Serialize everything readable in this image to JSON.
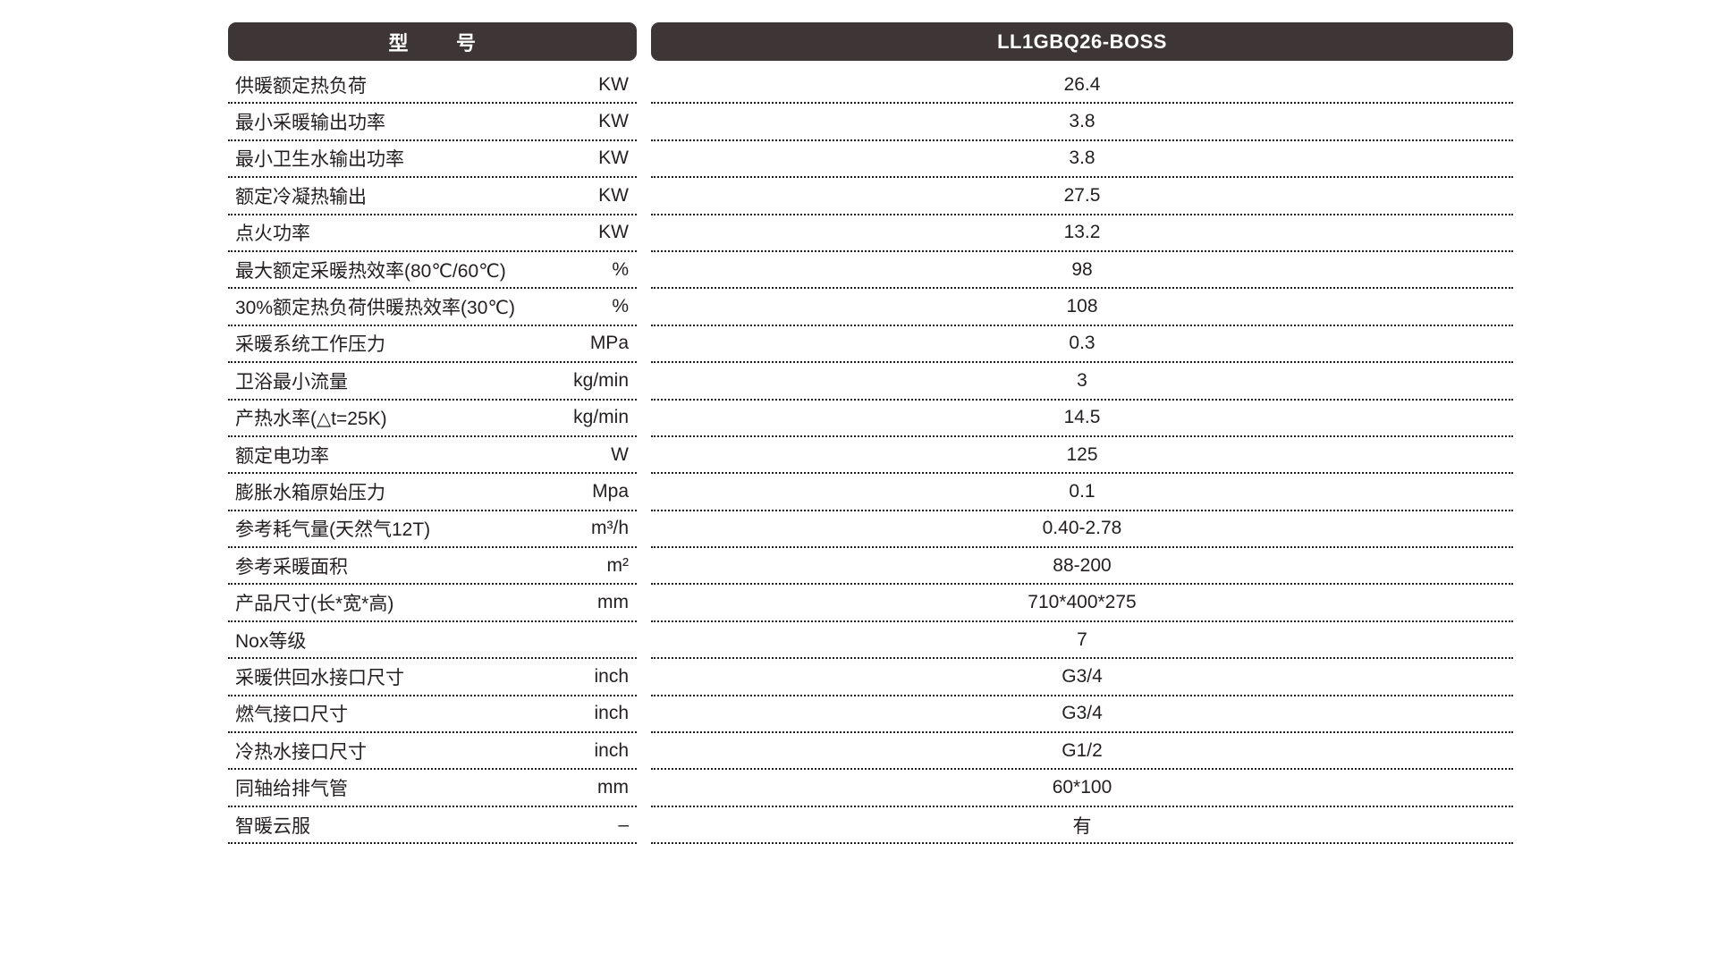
{
  "table": {
    "model_header": "型        号",
    "model_value": "LL1GBQ26-BOSS",
    "rows": [
      {
        "label": "供暖额定热负荷",
        "unit": "KW",
        "value": "26.4"
      },
      {
        "label": "最小采暖输出功率",
        "unit": "KW",
        "value": "3.8"
      },
      {
        "label": "最小卫生水输出功率",
        "unit": "KW",
        "value": "3.8"
      },
      {
        "label": "额定冷凝热输出",
        "unit": "KW",
        "value": "27.5"
      },
      {
        "label": "点火功率",
        "unit": "KW",
        "value": "13.2"
      },
      {
        "label": "最大额定采暖热效率(80℃/60℃)",
        "unit": "%",
        "value": "98"
      },
      {
        "label": "30%额定热负荷供暖热效率(30℃)",
        "unit": "%",
        "value": "108"
      },
      {
        "label": "采暖系统工作压力",
        "unit": "MPa",
        "value": "0.3"
      },
      {
        "label": "卫浴最小流量",
        "unit": "kg/min",
        "value": "3"
      },
      {
        "label": "产热水率(△t=25K)",
        "unit": "kg/min",
        "value": "14.5"
      },
      {
        "label": "额定电功率",
        "unit": "W",
        "value": "125"
      },
      {
        "label": "膨胀水箱原始压力",
        "unit": "Mpa",
        "value": "0.1"
      },
      {
        "label": "参考耗气量(天然气12T)",
        "unit": "m³/h",
        "value": "0.40-2.78"
      },
      {
        "label": "参考采暖面积",
        "unit": "m²",
        "value": "88-200"
      },
      {
        "label": "产品尺寸(长*宽*高)",
        "unit": "mm",
        "value": "710*400*275"
      },
      {
        "label": "Nox等级",
        "unit": "",
        "value": "7"
      },
      {
        "label": "采暖供回水接口尺寸",
        "unit": "inch",
        "value": "G3/4"
      },
      {
        "label": "燃气接口尺寸",
        "unit": "inch",
        "value": "G3/4"
      },
      {
        "label": "冷热水接口尺寸",
        "unit": "inch",
        "value": "G1/2"
      },
      {
        "label": "同轴给排气管",
        "unit": "mm",
        "value": "60*100"
      },
      {
        "label": "智暖云服",
        "unit": "–",
        "value": "有"
      }
    ]
  },
  "colors": {
    "header_bg": "#3d3536",
    "text": "#231f20",
    "dotted_rule": "#1c1c1c",
    "page_bg": "#ffffff"
  }
}
